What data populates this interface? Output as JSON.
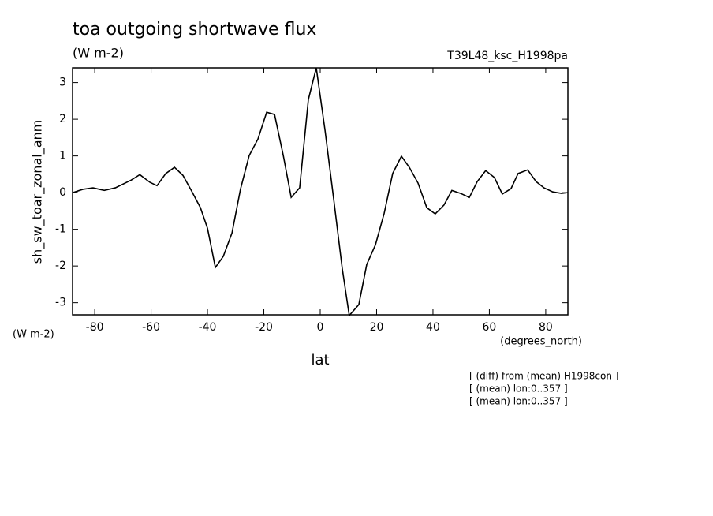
{
  "chart_data": {
    "type": "line",
    "title": "toa outgoing shortwave flux",
    "subtitle": "(W m-2)",
    "run_label": "T39L48_ksc_H1998pa",
    "y_label": "sh_sw_toar_zonal_anm",
    "y_units": "(W m-2)",
    "x_units": "(degrees_north)",
    "x_label": "lat",
    "notes": [
      "[ (diff) from (mean) H1998con ]",
      "[ (mean) lon:0..357 ]",
      "[ (mean) lon:0..357 ]"
    ],
    "x": [
      -87.8,
      -84.2,
      -80.6,
      -76.6,
      -72.7,
      -67.1,
      -64.0,
      -60.4,
      -57.9,
      -54.8,
      -51.7,
      -48.7,
      -45.6,
      -42.5,
      -40.0,
      -37.2,
      -34.4,
      -31.3,
      -28.3,
      -25.2,
      -22.1,
      -19.0,
      -16.2,
      -13.1,
      -10.3,
      -7.3,
      -4.2,
      -1.4,
      1.7,
      4.8,
      7.8,
      10.3,
      13.7,
      16.5,
      19.6,
      22.7,
      25.7,
      28.8,
      31.6,
      34.7,
      37.8,
      40.8,
      43.9,
      46.7,
      49.8,
      52.9,
      55.7,
      58.7,
      61.8,
      64.6,
      67.7,
      70.2,
      73.6,
      76.6,
      79.4,
      82.5,
      85.6,
      87.8
    ],
    "series": [
      {
        "color": "#000000",
        "values": [
          0,
          0.09,
          0.13,
          0.06,
          0.13,
          0.34,
          0.49,
          0.28,
          0.19,
          0.52,
          0.69,
          0.47,
          0.04,
          -0.41,
          -0.97,
          -2.04,
          -1.74,
          -1.1,
          0.09,
          1.01,
          1.46,
          2.19,
          2.13,
          1.01,
          -0.13,
          0.13,
          2.54,
          3.4,
          1.7,
          -0.19,
          -2.06,
          -3.35,
          -3.05,
          -1.96,
          -1.42,
          -0.56,
          0.52,
          0.99,
          0.69,
          0.26,
          -0.41,
          -0.58,
          -0.34,
          0.06,
          -0.02,
          -0.13,
          0.3,
          0.6,
          0.41,
          -0.04,
          0.11,
          0.52,
          0.62,
          0.3,
          0.13,
          0.02,
          -0.02,
          0
        ]
      }
    ],
    "xlim": [
      -87.86,
      87.86
    ],
    "xticks": [
      -80,
      -60,
      -40,
      -20,
      0,
      20,
      40,
      60,
      80
    ],
    "ylim": [
      -3.33,
      3.4
    ],
    "yticks": [
      -3,
      -2,
      -1,
      0,
      1,
      2,
      3
    ]
  }
}
